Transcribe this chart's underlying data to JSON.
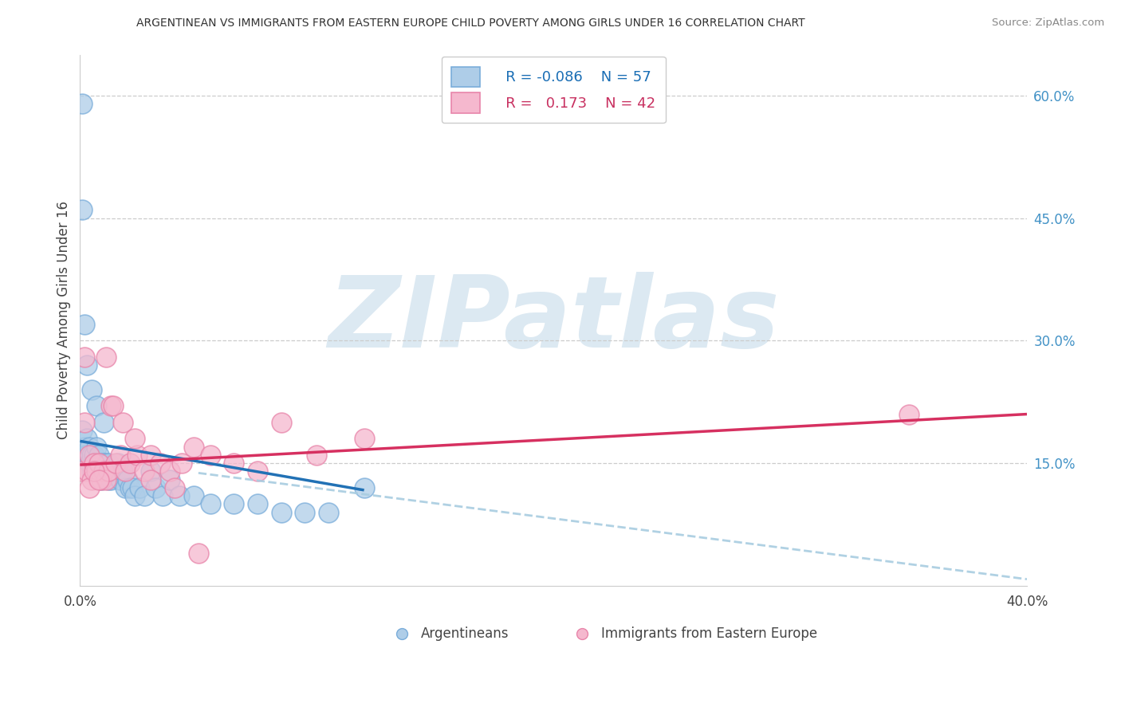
{
  "title": "ARGENTINEAN VS IMMIGRANTS FROM EASTERN EUROPE CHILD POVERTY AMONG GIRLS UNDER 16 CORRELATION CHART",
  "source": "Source: ZipAtlas.com",
  "ylabel": "Child Poverty Among Girls Under 16",
  "xlim": [
    0.0,
    0.4
  ],
  "ylim": [
    0.0,
    0.65
  ],
  "xticks": [
    0.0,
    0.1,
    0.2,
    0.3,
    0.4
  ],
  "xtick_labels": [
    "0.0%",
    "",
    "",
    "",
    "40.0%"
  ],
  "yticks_right": [
    0.15,
    0.3,
    0.45,
    0.6
  ],
  "ytick_labels_right": [
    "15.0%",
    "30.0%",
    "45.0%",
    "60.0%"
  ],
  "blue_color": "#aecde8",
  "pink_color": "#f5b8ce",
  "blue_edge": "#7aadda",
  "pink_edge": "#e885aa",
  "blue_line_color": "#2171b5",
  "pink_line_color": "#d63060",
  "dash_color": "#a8cce0",
  "watermark": "ZIPatlas",
  "watermark_color": "#dce9f2",
  "arg_x": [
    0.001,
    0.002,
    0.002,
    0.003,
    0.003,
    0.004,
    0.004,
    0.005,
    0.005,
    0.006,
    0.006,
    0.007,
    0.007,
    0.008,
    0.008,
    0.009,
    0.009,
    0.01,
    0.01,
    0.011,
    0.011,
    0.012,
    0.012,
    0.013,
    0.013,
    0.014,
    0.015,
    0.016,
    0.017,
    0.018,
    0.019,
    0.02,
    0.021,
    0.022,
    0.023,
    0.025,
    0.027,
    0.03,
    0.032,
    0.035,
    0.038,
    0.042,
    0.048,
    0.055,
    0.065,
    0.075,
    0.085,
    0.095,
    0.105,
    0.12,
    0.001,
    0.001,
    0.002,
    0.003,
    0.005,
    0.007,
    0.01
  ],
  "arg_y": [
    0.19,
    0.17,
    0.16,
    0.18,
    0.16,
    0.17,
    0.15,
    0.16,
    0.14,
    0.16,
    0.15,
    0.17,
    0.15,
    0.16,
    0.14,
    0.15,
    0.13,
    0.15,
    0.14,
    0.15,
    0.14,
    0.15,
    0.13,
    0.14,
    0.13,
    0.14,
    0.14,
    0.15,
    0.13,
    0.14,
    0.12,
    0.13,
    0.12,
    0.12,
    0.11,
    0.12,
    0.11,
    0.14,
    0.12,
    0.11,
    0.13,
    0.11,
    0.11,
    0.1,
    0.1,
    0.1,
    0.09,
    0.09,
    0.09,
    0.12,
    0.59,
    0.46,
    0.32,
    0.27,
    0.24,
    0.22,
    0.2
  ],
  "ee_x": [
    0.001,
    0.002,
    0.003,
    0.004,
    0.005,
    0.006,
    0.007,
    0.008,
    0.009,
    0.01,
    0.011,
    0.012,
    0.013,
    0.015,
    0.017,
    0.019,
    0.021,
    0.024,
    0.027,
    0.03,
    0.034,
    0.038,
    0.043,
    0.048,
    0.055,
    0.065,
    0.075,
    0.085,
    0.1,
    0.12,
    0.002,
    0.004,
    0.006,
    0.008,
    0.011,
    0.014,
    0.018,
    0.023,
    0.03,
    0.04,
    0.05,
    0.35
  ],
  "ee_y": [
    0.14,
    0.2,
    0.14,
    0.16,
    0.13,
    0.15,
    0.14,
    0.15,
    0.13,
    0.14,
    0.13,
    0.14,
    0.22,
    0.15,
    0.16,
    0.14,
    0.15,
    0.16,
    0.14,
    0.16,
    0.15,
    0.14,
    0.15,
    0.17,
    0.16,
    0.15,
    0.14,
    0.2,
    0.16,
    0.18,
    0.28,
    0.12,
    0.14,
    0.13,
    0.28,
    0.22,
    0.2,
    0.18,
    0.13,
    0.12,
    0.04,
    0.21
  ],
  "blue_line_x": [
    0.0,
    0.12
  ],
  "blue_line_y": [
    0.177,
    0.117
  ],
  "pink_line_x": [
    0.0,
    0.4
  ],
  "pink_line_y": [
    0.148,
    0.21
  ],
  "dash_line_x": [
    0.05,
    0.4
  ],
  "dash_line_y": [
    0.138,
    0.008
  ]
}
